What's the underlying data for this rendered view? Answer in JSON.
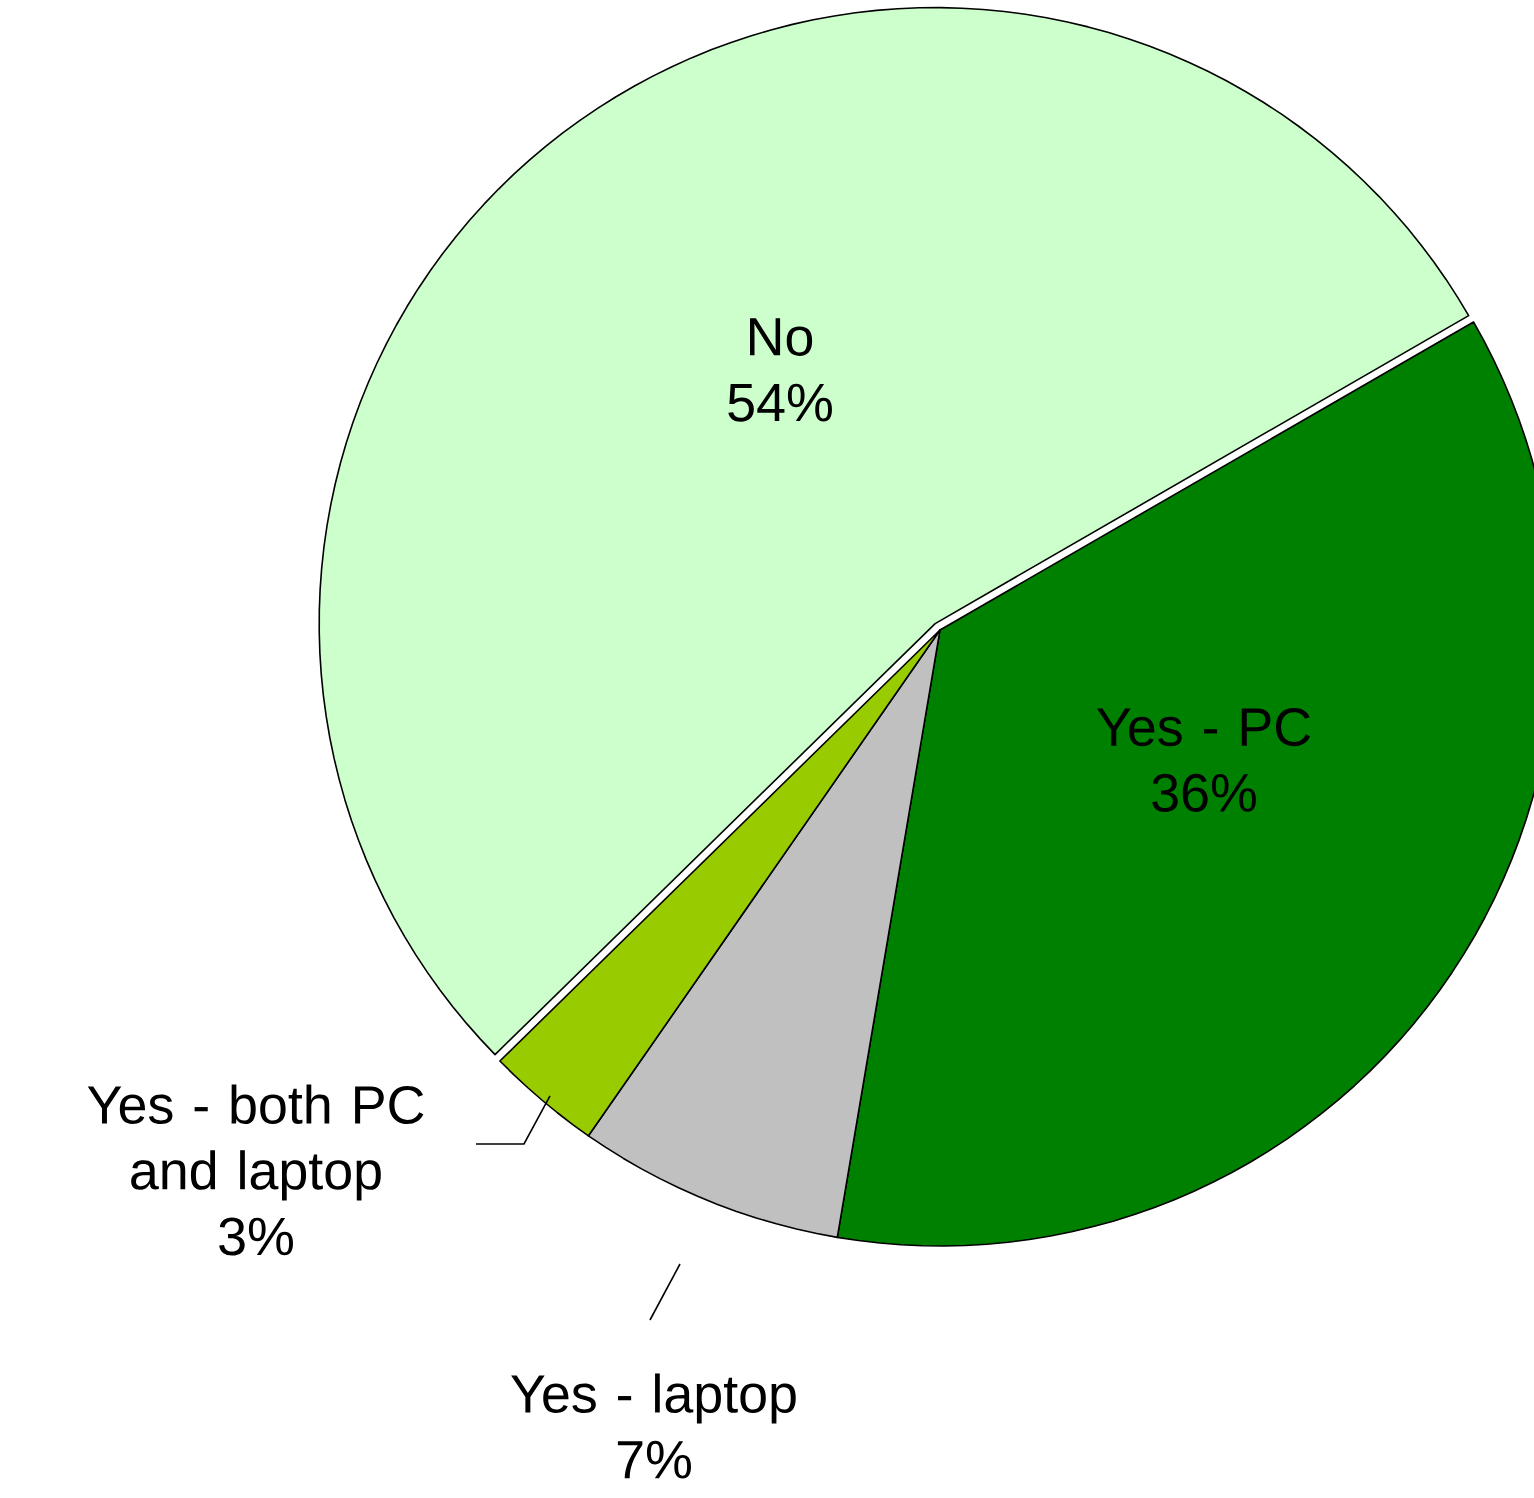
{
  "chart_data": {
    "type": "pie",
    "categories": [
      "No",
      "Yes - PC",
      "Yes - laptop",
      "Yes - both PC and laptop"
    ],
    "values": [
      54,
      36,
      7,
      3
    ],
    "value_labels": [
      "54%",
      "36%",
      "7%",
      "3%"
    ],
    "colors": [
      "#ccffcc",
      "#008000",
      "#c0c0c0",
      "#99cc00"
    ]
  }
}
